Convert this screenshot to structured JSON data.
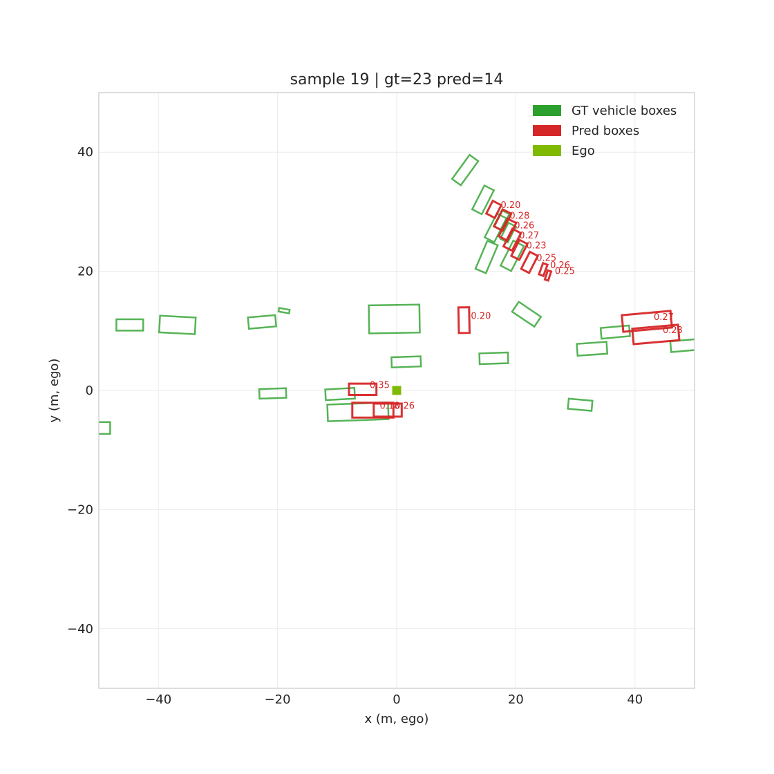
{
  "chart_data": {
    "type": "scatter",
    "title": "sample 19 | gt=23 pred=14",
    "xlabel": "x (m, ego)",
    "ylabel": "y (m, ego)",
    "xlim": [
      -50,
      50
    ],
    "ylim": [
      -50,
      50
    ],
    "xticks": [
      -40,
      -20,
      0,
      20,
      40
    ],
    "yticks": [
      -40,
      -20,
      0,
      20,
      40
    ],
    "xtick_labels": [
      "−40",
      "−20",
      "0",
      "20",
      "40"
    ],
    "ytick_labels": [
      "−40",
      "−20",
      "0",
      "20",
      "40"
    ],
    "grid": true,
    "legend_position": "top-right",
    "colors": {
      "gt": "#2ca02c",
      "pred": "#d62728",
      "ego": "#7fba00",
      "grid": "#ebebeb",
      "frame": "#cccccc"
    },
    "legend": [
      {
        "label": "GT vehicle boxes",
        "color": "#2ca02c"
      },
      {
        "label": "Pred boxes",
        "color": "#d62728"
      },
      {
        "label": "Ego",
        "color": "#7fba00"
      }
    ],
    "ego": {
      "x": 0,
      "y": 0,
      "size": 1.5
    },
    "gt_boxes": [
      {
        "cx": -44.8,
        "cy": 11.0,
        "length": 4.5,
        "width": 1.9,
        "heading": 0
      },
      {
        "cx": -36.8,
        "cy": 11.0,
        "length": 6.0,
        "width": 2.8,
        "heading": -3
      },
      {
        "cx": -22.6,
        "cy": 11.5,
        "length": 4.6,
        "width": 1.9,
        "heading": 5
      },
      {
        "cx": -18.9,
        "cy": 13.4,
        "length": 1.8,
        "width": 0.6,
        "heading": -10
      },
      {
        "cx": -0.4,
        "cy": 12.0,
        "length": 8.5,
        "width": 4.7,
        "heading": 1
      },
      {
        "cx": -20.8,
        "cy": -0.5,
        "length": 4.5,
        "width": 1.6,
        "heading": 2
      },
      {
        "cx": -9.5,
        "cy": -0.6,
        "length": 4.9,
        "width": 1.8,
        "heading": 3
      },
      {
        "cx": -6.5,
        "cy": -3.6,
        "length": 10.2,
        "width": 2.8,
        "heading": 2
      },
      {
        "cx": 1.6,
        "cy": 4.8,
        "length": 4.9,
        "width": 1.7,
        "heading": 2
      },
      {
        "cx": 16.3,
        "cy": 5.4,
        "length": 4.8,
        "width": 1.8,
        "heading": 2
      },
      {
        "cx": 21.8,
        "cy": 12.8,
        "length": 4.5,
        "width": 2.0,
        "heading": -34
      },
      {
        "cx": 32.8,
        "cy": 7.0,
        "length": 5.0,
        "width": 2.0,
        "heading": 4
      },
      {
        "cx": 36.7,
        "cy": 9.8,
        "length": 4.8,
        "width": 1.8,
        "heading": 5
      },
      {
        "cx": 49.0,
        "cy": 7.6,
        "length": 6.0,
        "width": 1.8,
        "heading": 5
      },
      {
        "cx": 30.8,
        "cy": -2.4,
        "length": 4.0,
        "width": 1.7,
        "heading": -5
      },
      {
        "cx": -49.4,
        "cy": -6.3,
        "length": 2.6,
        "width": 2.0,
        "heading": 0
      },
      {
        "cx": 11.5,
        "cy": 37.0,
        "length": 5.0,
        "width": 1.8,
        "heading": 54
      },
      {
        "cx": 14.5,
        "cy": 32.0,
        "length": 4.5,
        "width": 1.8,
        "heading": 63
      },
      {
        "cx": 16.6,
        "cy": 27.3,
        "length": 4.5,
        "width": 1.8,
        "heading": 63
      },
      {
        "cx": 15.1,
        "cy": 22.4,
        "length": 5.1,
        "width": 1.9,
        "heading": 67
      },
      {
        "cx": 19.4,
        "cy": 22.6,
        "length": 4.7,
        "width": 2.0,
        "heading": 63
      },
      {
        "cx": 18.7,
        "cy": 26.5,
        "length": 3.0,
        "width": 1.4,
        "heading": 63
      },
      {
        "cx": 17.6,
        "cy": 28.6,
        "length": 3.0,
        "width": 1.4,
        "heading": 63
      }
    ],
    "pred_boxes": [
      {
        "cx": 11.3,
        "cy": 11.8,
        "length": 4.3,
        "width": 1.8,
        "heading": 91,
        "score": "0.20"
      },
      {
        "cx": 16.3,
        "cy": 30.4,
        "length": 2.4,
        "width": 1.6,
        "heading": 63,
        "score": "0.20"
      },
      {
        "cx": 17.8,
        "cy": 28.6,
        "length": 3.2,
        "width": 1.6,
        "heading": 63,
        "score": "0.28"
      },
      {
        "cx": 18.6,
        "cy": 27.0,
        "length": 3.3,
        "width": 1.6,
        "heading": 63,
        "score": "0.26"
      },
      {
        "cx": 19.4,
        "cy": 25.3,
        "length": 3.3,
        "width": 1.6,
        "heading": 63,
        "score": "0.27"
      },
      {
        "cx": 20.6,
        "cy": 23.6,
        "length": 3.0,
        "width": 1.5,
        "heading": 63,
        "score": "0.23"
      },
      {
        "cx": 22.3,
        "cy": 21.5,
        "length": 3.2,
        "width": 1.5,
        "heading": 63,
        "score": "0.25"
      },
      {
        "cx": 24.6,
        "cy": 20.3,
        "length": 2.0,
        "width": 0.8,
        "heading": 70,
        "score": "0.26"
      },
      {
        "cx": 25.4,
        "cy": 19.3,
        "length": 1.6,
        "width": 0.6,
        "heading": 72,
        "score": "0.25"
      },
      {
        "cx": 42.0,
        "cy": 11.6,
        "length": 8.2,
        "width": 2.8,
        "heading": 5,
        "score": "0.27"
      },
      {
        "cx": 43.5,
        "cy": 9.4,
        "length": 7.7,
        "width": 2.6,
        "heading": 5,
        "score": "0.23"
      },
      {
        "cx": -5.7,
        "cy": 0.2,
        "length": 4.6,
        "width": 1.9,
        "heading": 0,
        "score": "0.35"
      },
      {
        "cx": -4.0,
        "cy": -3.3,
        "length": 6.9,
        "width": 2.5,
        "heading": 0,
        "score": "0.18"
      },
      {
        "cx": -1.5,
        "cy": -3.3,
        "length": 4.7,
        "width": 2.2,
        "heading": 0,
        "score": "0.26"
      }
    ]
  }
}
